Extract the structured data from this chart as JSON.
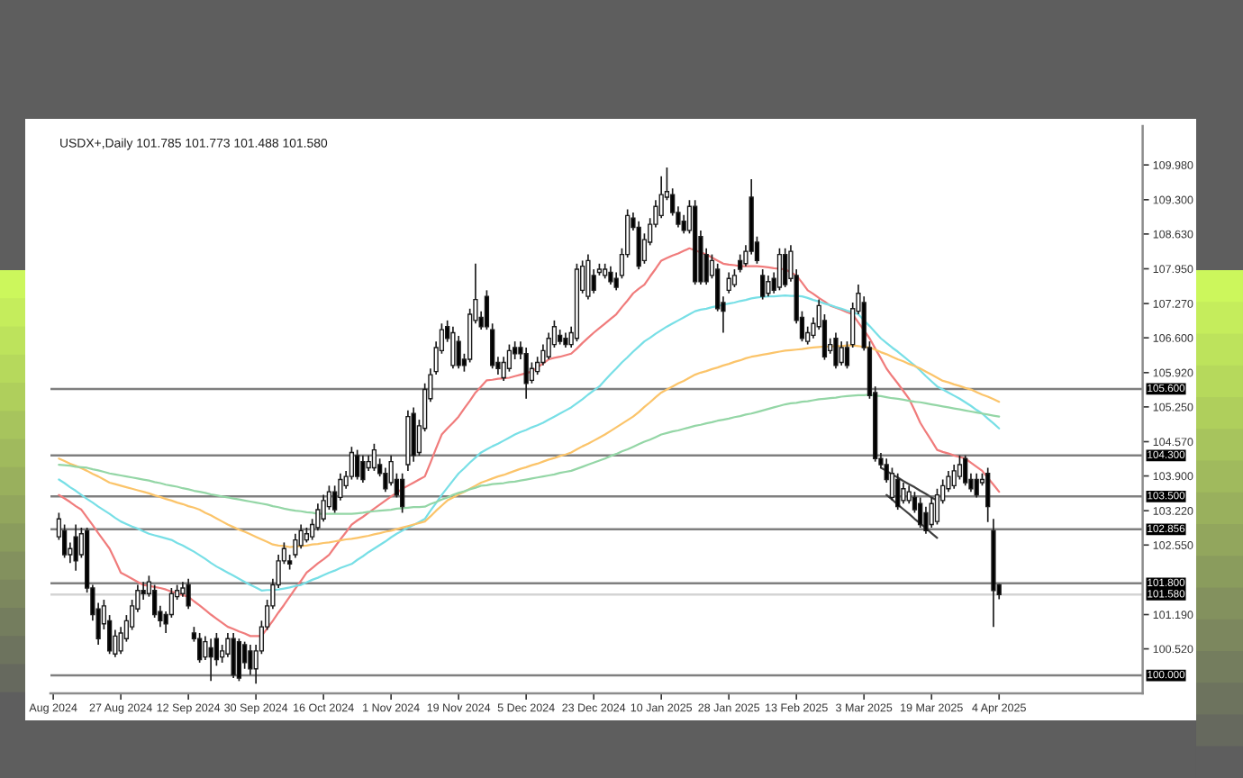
{
  "chart_data": {
    "type": "candlestick",
    "title": "USDX+,Daily 101.785 101.773 101.488 101.580",
    "categories": [
      "Aug 2024",
      null,
      null,
      null,
      null,
      null,
      null,
      null,
      null,
      null,
      null,
      null,
      "27 Aug 2024",
      null,
      null,
      null,
      null,
      null,
      null,
      null,
      null,
      null,
      null,
      null,
      "12 Sep 2024",
      null,
      null,
      null,
      null,
      null,
      null,
      null,
      null,
      null,
      null,
      null,
      "30 Sep 2024",
      null,
      null,
      null,
      null,
      null,
      null,
      null,
      null,
      null,
      null,
      null,
      "16 Oct 2024",
      null,
      null,
      null,
      null,
      null,
      null,
      null,
      null,
      null,
      null,
      null,
      "1 Nov 2024",
      null,
      null,
      null,
      null,
      null,
      null,
      null,
      null,
      null,
      null,
      null,
      "19 Nov 2024",
      null,
      null,
      null,
      null,
      null,
      null,
      null,
      null,
      null,
      null,
      null,
      "5 Dec 2024",
      null,
      null,
      null,
      null,
      null,
      null,
      null,
      null,
      null,
      null,
      null,
      "23 Dec 2024",
      null,
      null,
      null,
      null,
      null,
      null,
      null,
      null,
      null,
      null,
      null,
      "10 Jan 2025",
      null,
      null,
      null,
      null,
      null,
      null,
      null,
      null,
      null,
      null,
      null,
      "28 Jan 2025",
      null,
      null,
      null,
      null,
      null,
      null,
      null,
      null,
      null,
      null,
      null,
      "13 Feb 2025",
      null,
      null,
      null,
      null,
      null,
      null,
      null,
      null,
      null,
      null,
      null,
      "3 Mar 2025",
      null,
      null,
      null,
      null,
      null,
      null,
      null,
      null,
      null,
      null,
      null,
      "19 Mar 2025",
      null,
      null,
      null,
      null,
      null,
      null,
      null,
      null,
      null,
      null,
      null,
      "4 Apr 2025",
      null,
      null,
      null,
      null,
      null,
      null,
      null,
      null,
      null,
      null,
      null,
      null,
      null,
      null,
      null,
      null,
      null,
      null,
      null,
      null,
      null,
      null,
      null,
      null,
      null
    ],
    "ohlc": [
      null,
      [
        102.71,
        103.18,
        102.65,
        103.06
      ],
      [
        102.83,
        102.95,
        102.3,
        102.36
      ],
      [
        102.36,
        102.6,
        102.2,
        102.48
      ],
      [
        102.71,
        102.95,
        102.05,
        102.24
      ],
      [
        102.36,
        102.89,
        102.3,
        102.77
      ],
      [
        102.83,
        102.89,
        101.62,
        101.71
      ],
      [
        101.71,
        101.77,
        101.07,
        101.19
      ],
      [
        101.3,
        101.42,
        100.6,
        100.72
      ],
      [
        101.01,
        101.48,
        100.9,
        101.36
      ],
      [
        101.07,
        101.18,
        100.42,
        100.48
      ],
      [
        100.42,
        100.89,
        100.36,
        100.77
      ],
      [
        100.48,
        100.95,
        100.42,
        100.83
      ],
      [
        100.72,
        101.18,
        100.66,
        101.07
      ],
      [
        100.95,
        101.48,
        100.89,
        101.36
      ],
      [
        101.3,
        101.77,
        101.24,
        101.66
      ],
      [
        101.66,
        101.83,
        101.48,
        101.6
      ],
      [
        101.6,
        101.95,
        101.54,
        101.83
      ],
      [
        101.66,
        101.77,
        101.13,
        101.19
      ],
      [
        101.25,
        101.36,
        100.95,
        101.07
      ],
      [
        101.19,
        101.25,
        100.83,
        101.01
      ],
      [
        101.19,
        101.71,
        101.13,
        101.6
      ],
      [
        101.54,
        101.77,
        101.48,
        101.66
      ],
      [
        101.6,
        101.83,
        101.54,
        101.71
      ],
      [
        101.77,
        101.89,
        101.3,
        101.36
      ],
      [
        100.83,
        100.95,
        100.66,
        100.72
      ],
      [
        100.72,
        100.83,
        100.25,
        100.31
      ],
      [
        100.36,
        100.77,
        100.3,
        100.66
      ],
      [
        100.54,
        100.72,
        99.89,
        100.36
      ],
      [
        100.72,
        100.83,
        100.19,
        100.31
      ],
      [
        100.36,
        100.6,
        100.25,
        100.48
      ],
      [
        100.42,
        100.83,
        100.36,
        100.72
      ],
      [
        100.72,
        100.83,
        99.95,
        100.01
      ],
      [
        100.66,
        100.72,
        99.89,
        99.95
      ],
      [
        100.6,
        100.66,
        100.13,
        100.25
      ],
      [
        100.48,
        100.6,
        100.01,
        100.13
      ],
      [
        100.13,
        100.6,
        99.84,
        100.48
      ],
      [
        100.48,
        101.07,
        100.42,
        100.95
      ],
      [
        100.95,
        101.48,
        100.89,
        101.36
      ],
      [
        101.36,
        101.89,
        101.3,
        101.77
      ],
      [
        101.77,
        102.36,
        101.71,
        102.24
      ],
      [
        102.24,
        102.6,
        102.18,
        102.48
      ],
      [
        102.24,
        102.36,
        102.07,
        102.18
      ],
      [
        102.36,
        102.77,
        102.3,
        102.65
      ],
      [
        102.54,
        102.95,
        102.48,
        102.83
      ],
      [
        102.65,
        102.89,
        102.6,
        102.77
      ],
      [
        102.71,
        103.06,
        102.65,
        102.95
      ],
      [
        102.89,
        103.36,
        102.83,
        103.24
      ],
      [
        103.06,
        103.53,
        103.01,
        103.42
      ],
      [
        103.3,
        103.71,
        103.24,
        103.59
      ],
      [
        103.59,
        103.71,
        103.18,
        103.24
      ],
      [
        103.48,
        103.95,
        103.42,
        103.83
      ],
      [
        103.71,
        104.0,
        103.65,
        103.89
      ],
      [
        103.89,
        104.47,
        103.83,
        104.36
      ],
      [
        104.3,
        104.41,
        103.83,
        103.89
      ],
      [
        104.18,
        104.3,
        103.77,
        103.83
      ],
      [
        104.06,
        104.3,
        104.0,
        104.18
      ],
      [
        104.06,
        104.53,
        104.0,
        104.41
      ],
      [
        104.12,
        104.24,
        103.89,
        103.95
      ],
      [
        103.95,
        104.06,
        103.59,
        103.65
      ],
      [
        103.77,
        104.3,
        103.71,
        104.18
      ],
      [
        103.83,
        103.95,
        103.48,
        103.53
      ],
      [
        103.83,
        103.95,
        103.18,
        103.3
      ],
      [
        104.12,
        105.18,
        104.0,
        105.06
      ],
      [
        105.12,
        105.24,
        104.18,
        104.3
      ],
      [
        104.36,
        105.0,
        104.3,
        104.88
      ],
      [
        104.83,
        105.71,
        104.77,
        105.59
      ],
      [
        105.41,
        106.0,
        105.35,
        105.88
      ],
      [
        105.94,
        106.53,
        105.88,
        106.41
      ],
      [
        106.35,
        106.88,
        106.29,
        106.76
      ],
      [
        106.82,
        106.94,
        106.52,
        106.59
      ],
      [
        106.06,
        106.82,
        106.0,
        106.7
      ],
      [
        106.53,
        106.64,
        106.0,
        106.06
      ],
      [
        106.18,
        106.29,
        105.94,
        106.06
      ],
      [
        106.18,
        107.17,
        106.12,
        107.06
      ],
      [
        106.94,
        108.05,
        106.88,
        107.35
      ],
      [
        107.0,
        107.12,
        106.76,
        106.82
      ],
      [
        107.41,
        107.53,
        106.76,
        106.82
      ],
      [
        106.76,
        106.88,
        106.0,
        106.06
      ],
      [
        106.12,
        106.23,
        105.88,
        106.0
      ],
      [
        105.82,
        106.23,
        105.76,
        106.12
      ],
      [
        106.0,
        106.47,
        105.94,
        106.35
      ],
      [
        106.41,
        106.53,
        106.18,
        106.29
      ],
      [
        106.41,
        106.53,
        106.18,
        106.29
      ],
      [
        106.29,
        106.41,
        105.41,
        105.71
      ],
      [
        105.77,
        106.12,
        105.71,
        106.0
      ],
      [
        105.94,
        106.23,
        105.88,
        106.12
      ],
      [
        106.12,
        106.47,
        106.06,
        106.35
      ],
      [
        106.23,
        106.7,
        106.18,
        106.59
      ],
      [
        106.47,
        106.94,
        106.41,
        106.82
      ],
      [
        106.65,
        106.76,
        106.47,
        106.53
      ],
      [
        106.59,
        106.7,
        106.41,
        106.47
      ],
      [
        106.47,
        106.82,
        106.41,
        106.7
      ],
      [
        106.59,
        108.05,
        106.53,
        107.94
      ],
      [
        107.53,
        108.11,
        107.47,
        108.0
      ],
      [
        107.41,
        108.23,
        107.35,
        108.11
      ],
      [
        107.82,
        107.94,
        107.47,
        107.53
      ],
      [
        107.88,
        108.05,
        107.82,
        107.94
      ],
      [
        107.82,
        108.05,
        107.76,
        107.94
      ],
      [
        107.88,
        108.0,
        107.64,
        107.7
      ],
      [
        107.76,
        107.88,
        107.53,
        107.59
      ],
      [
        107.82,
        108.35,
        107.76,
        108.23
      ],
      [
        108.23,
        109.11,
        108.17,
        108.99
      ],
      [
        108.94,
        109.05,
        108.7,
        108.76
      ],
      [
        108.76,
        108.88,
        107.94,
        108.0
      ],
      [
        108.11,
        108.64,
        108.05,
        108.52
      ],
      [
        108.47,
        108.94,
        108.41,
        108.82
      ],
      [
        108.82,
        109.29,
        108.76,
        109.17
      ],
      [
        108.99,
        109.76,
        108.94,
        109.4
      ],
      [
        109.35,
        109.93,
        109.29,
        109.46
      ],
      [
        109.4,
        109.52,
        108.99,
        109.05
      ],
      [
        109.05,
        109.17,
        108.76,
        108.82
      ],
      [
        108.88,
        109.0,
        108.64,
        108.7
      ],
      [
        108.7,
        109.29,
        108.64,
        109.17
      ],
      [
        109.17,
        109.29,
        107.64,
        107.7
      ],
      [
        108.58,
        108.7,
        107.64,
        107.7
      ],
      [
        108.23,
        108.35,
        107.64,
        107.7
      ],
      [
        107.82,
        108.23,
        107.76,
        108.11
      ],
      [
        107.94,
        108.05,
        107.12,
        107.17
      ],
      [
        107.29,
        107.41,
        106.7,
        107.12
      ],
      [
        107.53,
        107.88,
        107.47,
        107.76
      ],
      [
        107.64,
        107.94,
        107.59,
        107.82
      ],
      [
        108.11,
        108.23,
        107.88,
        107.94
      ],
      [
        108.05,
        108.41,
        108.0,
        108.29
      ],
      [
        109.35,
        109.7,
        108.23,
        108.29
      ],
      [
        108.47,
        108.58,
        108.05,
        108.11
      ],
      [
        107.82,
        107.94,
        107.35,
        107.41
      ],
      [
        107.47,
        107.82,
        107.41,
        107.7
      ],
      [
        107.76,
        107.88,
        107.47,
        107.53
      ],
      [
        107.59,
        108.35,
        107.53,
        108.23
      ],
      [
        108.23,
        108.35,
        107.59,
        107.64
      ],
      [
        107.76,
        108.41,
        107.7,
        108.29
      ],
      [
        107.82,
        107.94,
        106.88,
        106.94
      ],
      [
        107.0,
        107.12,
        106.53,
        106.59
      ],
      [
        106.53,
        106.82,
        106.47,
        106.7
      ],
      [
        106.65,
        107.0,
        106.59,
        106.88
      ],
      [
        106.82,
        107.35,
        106.76,
        107.23
      ],
      [
        106.94,
        107.06,
        106.17,
        106.23
      ],
      [
        106.35,
        106.59,
        106.29,
        106.47
      ],
      [
        106.59,
        106.7,
        106.0,
        106.06
      ],
      [
        106.12,
        106.53,
        106.06,
        106.41
      ],
      [
        106.41,
        106.53,
        106.0,
        106.06
      ],
      [
        106.47,
        107.29,
        106.41,
        107.17
      ],
      [
        107.12,
        107.64,
        107.06,
        107.47
      ],
      [
        107.29,
        107.41,
        106.35,
        106.41
      ],
      [
        106.41,
        106.53,
        105.41,
        105.47
      ],
      [
        105.53,
        105.65,
        104.18,
        104.24
      ],
      [
        104.24,
        104.35,
        104.06,
        104.12
      ],
      [
        104.12,
        104.24,
        103.77,
        103.83
      ],
      [
        103.48,
        104.06,
        103.42,
        103.95
      ],
      [
        103.83,
        103.95,
        103.24,
        103.3
      ],
      [
        103.42,
        103.77,
        103.36,
        103.65
      ],
      [
        103.42,
        103.71,
        103.36,
        103.59
      ],
      [
        103.48,
        103.59,
        103.18,
        103.24
      ],
      [
        103.36,
        103.48,
        102.89,
        102.95
      ],
      [
        103.18,
        103.3,
        102.77,
        102.83
      ],
      [
        102.95,
        103.48,
        102.89,
        103.36
      ],
      [
        103.01,
        103.65,
        102.95,
        103.53
      ],
      [
        103.42,
        103.83,
        103.36,
        103.71
      ],
      [
        103.65,
        104.0,
        103.59,
        103.89
      ],
      [
        103.71,
        104.12,
        103.65,
        104.0
      ],
      [
        103.89,
        104.3,
        103.83,
        104.12
      ],
      [
        104.24,
        104.3,
        103.71,
        103.77
      ],
      [
        103.83,
        103.95,
        103.59,
        103.65
      ],
      [
        103.83,
        103.95,
        103.48,
        103.53
      ],
      [
        103.77,
        103.95,
        103.71,
        103.83
      ],
      [
        103.95,
        104.06,
        103.0,
        103.3
      ],
      [
        102.83,
        103.06,
        100.95,
        101.66
      ],
      [
        101.77,
        101.79,
        101.49,
        101.58
      ],
      null,
      null,
      null,
      null,
      null,
      null,
      null,
      null,
      null,
      null,
      null,
      null,
      null,
      null,
      null,
      null,
      null,
      null,
      null,
      null,
      null,
      null,
      null,
      null,
      null
    ],
    "series": [
      {
        "type": "line",
        "color": "#f07c7c",
        "values": [
          null,
          103.53,
          103.46,
          103.39,
          103.31,
          103.24,
          103.09,
          102.94,
          102.78,
          102.63,
          102.48,
          102.25,
          102.01,
          101.95,
          101.89,
          101.83,
          101.77,
          101.75,
          101.73,
          101.71,
          101.68,
          101.64,
          101.61,
          101.57,
          101.54,
          101.45,
          101.37,
          101.28,
          101.19,
          101.11,
          101.03,
          100.95,
          100.91,
          100.86,
          100.82,
          100.77,
          100.77,
          100.77,
          100.92,
          101.07,
          101.23,
          101.38,
          101.54,
          101.7,
          101.85,
          102.01,
          102.1,
          102.19,
          102.27,
          102.36,
          102.51,
          102.66,
          102.8,
          102.95,
          103.03,
          103.1,
          103.18,
          103.26,
          103.34,
          103.42,
          103.5,
          103.57,
          103.65,
          103.71,
          103.77,
          103.83,
          103.89,
          104.16,
          104.44,
          104.71,
          104.83,
          104.94,
          105.06,
          105.22,
          105.37,
          105.53,
          105.65,
          105.77,
          105.78,
          105.8,
          105.81,
          105.82,
          105.85,
          105.88,
          105.91,
          105.94,
          106.02,
          106.1,
          106.18,
          106.21,
          106.23,
          106.26,
          106.29,
          106.39,
          106.5,
          106.6,
          106.7,
          106.79,
          106.88,
          106.97,
          107.06,
          107.2,
          107.33,
          107.47,
          107.56,
          107.64,
          107.8,
          107.95,
          108.11,
          108.16,
          108.21,
          108.25,
          108.3,
          108.35,
          108.31,
          108.27,
          108.23,
          108.17,
          108.11,
          108.05,
          108.03,
          108.02,
          108.0,
          108.0,
          108.0,
          108.0,
          107.99,
          107.98,
          107.96,
          107.95,
          107.94,
          107.88,
          107.82,
          107.68,
          107.53,
          107.46,
          107.38,
          107.31,
          107.23,
          107.19,
          107.15,
          107.1,
          107.06,
          106.9,
          106.75,
          106.59,
          106.39,
          106.2,
          106.0,
          105.85,
          105.71,
          105.56,
          105.41,
          105.18,
          104.94,
          104.76,
          104.59,
          104.41,
          104.37,
          104.34,
          104.3,
          104.27,
          104.24,
          104.16,
          104.08,
          104.0,
          103.86,
          103.73,
          103.59,
          null,
          null,
          null,
          null,
          null,
          null,
          null,
          null,
          null,
          null,
          null,
          null,
          null,
          null,
          null,
          null,
          null,
          null,
          null,
          null,
          null,
          null,
          null,
          null,
          null
        ]
      },
      {
        "type": "line",
        "color": "#78dfe6",
        "values": [
          null,
          103.83,
          103.76,
          103.68,
          103.61,
          103.53,
          103.45,
          103.38,
          103.3,
          103.23,
          103.16,
          103.08,
          103.01,
          102.96,
          102.91,
          102.87,
          102.82,
          102.77,
          102.74,
          102.71,
          102.68,
          102.65,
          102.59,
          102.54,
          102.48,
          102.42,
          102.35,
          102.28,
          102.2,
          102.13,
          102.07,
          102.01,
          101.95,
          101.89,
          101.83,
          101.77,
          101.72,
          101.66,
          101.67,
          101.67,
          101.68,
          101.7,
          101.72,
          101.75,
          101.77,
          101.82,
          101.87,
          101.91,
          101.96,
          102.01,
          102.05,
          102.1,
          102.14,
          102.18,
          102.26,
          102.33,
          102.41,
          102.48,
          102.55,
          102.62,
          102.7,
          102.77,
          102.83,
          102.89,
          102.94,
          103.0,
          103.06,
          103.22,
          103.37,
          103.53,
          103.67,
          103.81,
          103.95,
          104.05,
          104.16,
          104.26,
          104.36,
          104.42,
          104.48,
          104.53,
          104.59,
          104.65,
          104.71,
          104.76,
          104.8,
          104.85,
          104.89,
          104.94,
          105.0,
          105.06,
          105.12,
          105.18,
          105.24,
          105.32,
          105.4,
          105.49,
          105.57,
          105.65,
          105.77,
          105.89,
          106.0,
          106.12,
          106.22,
          106.33,
          106.43,
          106.53,
          106.6,
          106.68,
          106.75,
          106.82,
          106.88,
          106.94,
          107.0,
          107.06,
          107.12,
          107.15,
          107.17,
          107.2,
          107.22,
          107.25,
          107.27,
          107.29,
          107.32,
          107.34,
          107.37,
          107.39,
          107.4,
          107.41,
          107.41,
          107.42,
          107.43,
          107.42,
          107.42,
          107.41,
          107.38,
          107.34,
          107.31,
          107.27,
          107.24,
          107.2,
          107.17,
          107.13,
          107.1,
          107.06,
          106.94,
          106.83,
          106.71,
          106.59,
          106.5,
          106.41,
          106.33,
          106.24,
          106.15,
          106.06,
          105.96,
          105.85,
          105.75,
          105.65,
          105.59,
          105.53,
          105.47,
          105.41,
          105.34,
          105.27,
          105.19,
          105.12,
          105.02,
          104.93,
          104.83,
          null,
          null,
          null,
          null,
          null,
          null,
          null,
          null,
          null,
          null,
          null,
          null,
          null,
          null,
          null,
          null,
          null,
          null,
          null,
          null,
          null,
          null,
          null,
          null,
          null
        ]
      },
      {
        "type": "line",
        "color": "#fbc46a",
        "values": [
          null,
          104.24,
          104.19,
          104.14,
          104.1,
          104.05,
          104.0,
          103.94,
          103.89,
          103.83,
          103.77,
          103.74,
          103.71,
          103.68,
          103.65,
          103.62,
          103.59,
          103.56,
          103.52,
          103.49,
          103.45,
          103.42,
          103.38,
          103.35,
          103.31,
          103.28,
          103.24,
          103.18,
          103.13,
          103.07,
          103.01,
          102.95,
          102.9,
          102.85,
          102.81,
          102.76,
          102.71,
          102.66,
          102.61,
          102.56,
          102.54,
          102.53,
          102.51,
          102.52,
          102.53,
          102.54,
          102.56,
          102.57,
          102.59,
          102.6,
          102.62,
          102.64,
          102.66,
          102.67,
          102.69,
          102.71,
          102.73,
          102.76,
          102.78,
          102.81,
          102.83,
          102.86,
          102.89,
          102.92,
          102.95,
          102.98,
          103.01,
          103.11,
          103.22,
          103.32,
          103.42,
          103.48,
          103.54,
          103.59,
          103.65,
          103.71,
          103.77,
          103.81,
          103.85,
          103.89,
          103.92,
          103.96,
          104.0,
          104.04,
          104.07,
          104.11,
          104.14,
          104.18,
          104.22,
          104.25,
          104.29,
          104.32,
          104.36,
          104.42,
          104.48,
          104.53,
          104.59,
          104.65,
          104.71,
          104.78,
          104.85,
          104.92,
          104.99,
          105.06,
          105.15,
          105.25,
          105.34,
          105.44,
          105.53,
          105.59,
          105.65,
          105.71,
          105.76,
          105.82,
          105.88,
          105.92,
          105.95,
          105.99,
          106.02,
          106.06,
          106.09,
          106.13,
          106.16,
          106.2,
          106.23,
          106.25,
          106.27,
          106.29,
          106.31,
          106.33,
          106.35,
          106.36,
          106.37,
          106.38,
          106.4,
          106.41,
          106.42,
          106.43,
          106.43,
          106.44,
          106.44,
          106.45,
          106.45,
          106.44,
          106.42,
          106.41,
          106.37,
          106.32,
          106.28,
          106.23,
          106.18,
          106.14,
          106.09,
          106.05,
          106.0,
          105.94,
          105.88,
          105.82,
          105.76,
          105.73,
          105.69,
          105.66,
          105.62,
          105.59,
          105.54,
          105.49,
          105.45,
          105.4,
          105.35,
          null,
          null,
          null,
          null,
          null,
          null,
          null,
          null,
          null,
          null,
          null,
          null,
          null,
          null,
          null,
          null,
          null,
          null,
          null,
          null,
          null,
          null,
          null,
          null,
          null
        ]
      },
      {
        "type": "line",
        "color": "#94d6a6",
        "values": [
          null,
          104.12,
          104.11,
          104.1,
          104.08,
          104.07,
          104.06,
          104.03,
          104.01,
          103.98,
          103.95,
          103.93,
          103.91,
          103.89,
          103.87,
          103.85,
          103.83,
          103.81,
          103.78,
          103.76,
          103.73,
          103.71,
          103.69,
          103.66,
          103.64,
          103.61,
          103.59,
          103.57,
          103.54,
          103.52,
          103.5,
          103.48,
          103.46,
          103.44,
          103.42,
          103.4,
          103.38,
          103.36,
          103.34,
          103.31,
          103.29,
          103.26,
          103.24,
          103.22,
          103.21,
          103.19,
          103.18,
          103.16,
          103.16,
          103.16,
          103.16,
          103.16,
          103.16,
          103.16,
          103.17,
          103.18,
          103.2,
          103.21,
          103.22,
          103.23,
          103.24,
          103.26,
          103.27,
          103.28,
          103.29,
          103.29,
          103.3,
          103.35,
          103.39,
          103.44,
          103.48,
          103.53,
          103.57,
          103.6,
          103.64,
          103.67,
          103.71,
          103.72,
          103.74,
          103.75,
          103.76,
          103.78,
          103.79,
          103.81,
          103.83,
          103.85,
          103.87,
          103.89,
          103.91,
          103.93,
          103.96,
          103.98,
          104.0,
          104.04,
          104.08,
          104.12,
          104.16,
          104.2,
          104.24,
          104.29,
          104.33,
          104.38,
          104.42,
          104.47,
          104.52,
          104.57,
          104.61,
          104.66,
          104.71,
          104.74,
          104.77,
          104.79,
          104.82,
          104.85,
          104.88,
          104.9,
          104.93,
          104.95,
          104.98,
          105.0,
          105.02,
          105.05,
          105.07,
          105.1,
          105.12,
          105.15,
          105.18,
          105.21,
          105.24,
          105.27,
          105.3,
          105.32,
          105.33,
          105.35,
          105.36,
          105.38,
          105.4,
          105.41,
          105.42,
          105.43,
          105.45,
          105.46,
          105.47,
          105.48,
          105.48,
          105.49,
          105.47,
          105.46,
          105.44,
          105.42,
          105.41,
          105.39,
          105.37,
          105.35,
          105.34,
          105.32,
          105.3,
          105.28,
          105.26,
          105.24,
          105.22,
          105.2,
          105.18,
          105.16,
          105.14,
          105.12,
          105.1,
          105.08,
          105.06,
          null,
          null,
          null,
          null,
          null,
          null,
          null,
          null,
          null,
          null,
          null,
          null,
          null,
          null,
          null,
          null,
          null,
          null,
          null,
          null,
          null,
          null,
          null,
          null,
          null
        ]
      },
      {
        "type": "line",
        "color": "#404040",
        "values": [
          null,
          null,
          null,
          null,
          null,
          null,
          null,
          null,
          null,
          null,
          null,
          null,
          null,
          null,
          null,
          null,
          null,
          null,
          null,
          null,
          null,
          null,
          null,
          null,
          null,
          null,
          null,
          null,
          null,
          null,
          null,
          null,
          null,
          null,
          null,
          null,
          null,
          null,
          null,
          null,
          null,
          null,
          null,
          null,
          null,
          null,
          null,
          null,
          null,
          null,
          null,
          null,
          null,
          null,
          null,
          null,
          null,
          null,
          null,
          null,
          null,
          null,
          null,
          null,
          null,
          null,
          null,
          null,
          null,
          null,
          null,
          null,
          null,
          null,
          null,
          null,
          null,
          null,
          null,
          null,
          null,
          null,
          null,
          null,
          null,
          null,
          null,
          null,
          null,
          null,
          null,
          null,
          null,
          null,
          null,
          null,
          null,
          null,
          null,
          null,
          null,
          null,
          null,
          null,
          null,
          null,
          null,
          null,
          null,
          null,
          null,
          null,
          null,
          null,
          null,
          null,
          null,
          null,
          null,
          null,
          null,
          null,
          null,
          null,
          null,
          null,
          null,
          null,
          null,
          null,
          null,
          null,
          null,
          null,
          null,
          null,
          null,
          null,
          null,
          null,
          null,
          null,
          null,
          null,
          null,
          null,
          null,
          104.06,
          104.0,
          103.93,
          103.87,
          103.8,
          103.74,
          103.68,
          103.61,
          103.55,
          103.48,
          103.42,
          null,
          null,
          null,
          null,
          null,
          null,
          null,
          null,
          null,
          null,
          null,
          null,
          null,
          null,
          null,
          null,
          null,
          null,
          null,
          null,
          null,
          null,
          null,
          null,
          null,
          null,
          null,
          null,
          null,
          null,
          null,
          null,
          null,
          null,
          null,
          null
        ]
      },
      {
        "type": "line",
        "color": "#404040",
        "values": [
          null,
          null,
          null,
          null,
          null,
          null,
          null,
          null,
          null,
          null,
          null,
          null,
          null,
          null,
          null,
          null,
          null,
          null,
          null,
          null,
          null,
          null,
          null,
          null,
          null,
          null,
          null,
          null,
          null,
          null,
          null,
          null,
          null,
          null,
          null,
          null,
          null,
          null,
          null,
          null,
          null,
          null,
          null,
          null,
          null,
          null,
          null,
          null,
          null,
          null,
          null,
          null,
          null,
          null,
          null,
          null,
          null,
          null,
          null,
          null,
          null,
          null,
          null,
          null,
          null,
          null,
          null,
          null,
          null,
          null,
          null,
          null,
          null,
          null,
          null,
          null,
          null,
          null,
          null,
          null,
          null,
          null,
          null,
          null,
          null,
          null,
          null,
          null,
          null,
          null,
          null,
          null,
          null,
          null,
          null,
          null,
          null,
          null,
          null,
          null,
          null,
          null,
          null,
          null,
          null,
          null,
          null,
          null,
          null,
          null,
          null,
          null,
          null,
          null,
          null,
          null,
          null,
          null,
          null,
          null,
          null,
          null,
          null,
          null,
          null,
          null,
          null,
          null,
          null,
          null,
          null,
          null,
          null,
          null,
          null,
          null,
          null,
          null,
          null,
          null,
          null,
          null,
          null,
          null,
          null,
          null,
          null,
          null,
          103.53,
          103.44,
          103.34,
          103.25,
          103.16,
          103.06,
          102.97,
          102.88,
          102.78,
          102.69,
          null,
          null,
          null,
          null,
          null,
          null,
          null,
          null,
          null,
          null,
          null,
          null,
          null,
          null,
          null,
          null,
          null,
          null,
          null,
          null,
          null,
          null,
          null,
          null,
          null,
          null,
          null,
          null,
          null,
          null,
          null,
          null,
          null,
          null,
          null,
          null
        ]
      }
    ],
    "ylim": [
      99.65,
      110.74
    ],
    "yticks": [
      {
        "value": 109.98,
        "label": "109.980"
      },
      {
        "value": 109.3,
        "label": "109.300"
      },
      {
        "value": 108.63,
        "label": "108.630"
      },
      {
        "value": 107.95,
        "label": "107.950"
      },
      {
        "value": 107.27,
        "label": "107.270"
      },
      {
        "value": 106.6,
        "label": "106.600"
      },
      {
        "value": 105.92,
        "label": "105.920"
      },
      {
        "value": 105.25,
        "label": "105.250"
      },
      {
        "value": 104.57,
        "label": "104.570"
      },
      {
        "value": 103.9,
        "label": "103.900"
      },
      {
        "value": 103.22,
        "label": "103.220"
      },
      {
        "value": 102.55,
        "label": "102.550"
      },
      {
        "value": 101.19,
        "label": "101.190"
      },
      {
        "value": 100.52,
        "label": "100.520"
      }
    ],
    "ref_lines": [
      {
        "axis": "y",
        "value": 105.6,
        "label": "105.600",
        "color": "#7f7f7f"
      },
      {
        "axis": "y",
        "value": 104.3,
        "label": "104.300",
        "color": "#7f7f7f"
      },
      {
        "axis": "y",
        "value": 103.5,
        "label": "103.500",
        "color": "#7f7f7f"
      },
      {
        "axis": "y",
        "value": 102.856,
        "label": "102.856",
        "color": "#7f7f7f"
      },
      {
        "axis": "y",
        "value": 101.8,
        "label": "101.800",
        "color": "#7f7f7f"
      },
      {
        "axis": "y",
        "value": 101.58,
        "label": "101.580",
        "color": "#d4d4d4"
      },
      {
        "axis": "y",
        "value": 100.0,
        "label": "100.000",
        "color": "#7f7f7f"
      }
    ]
  }
}
